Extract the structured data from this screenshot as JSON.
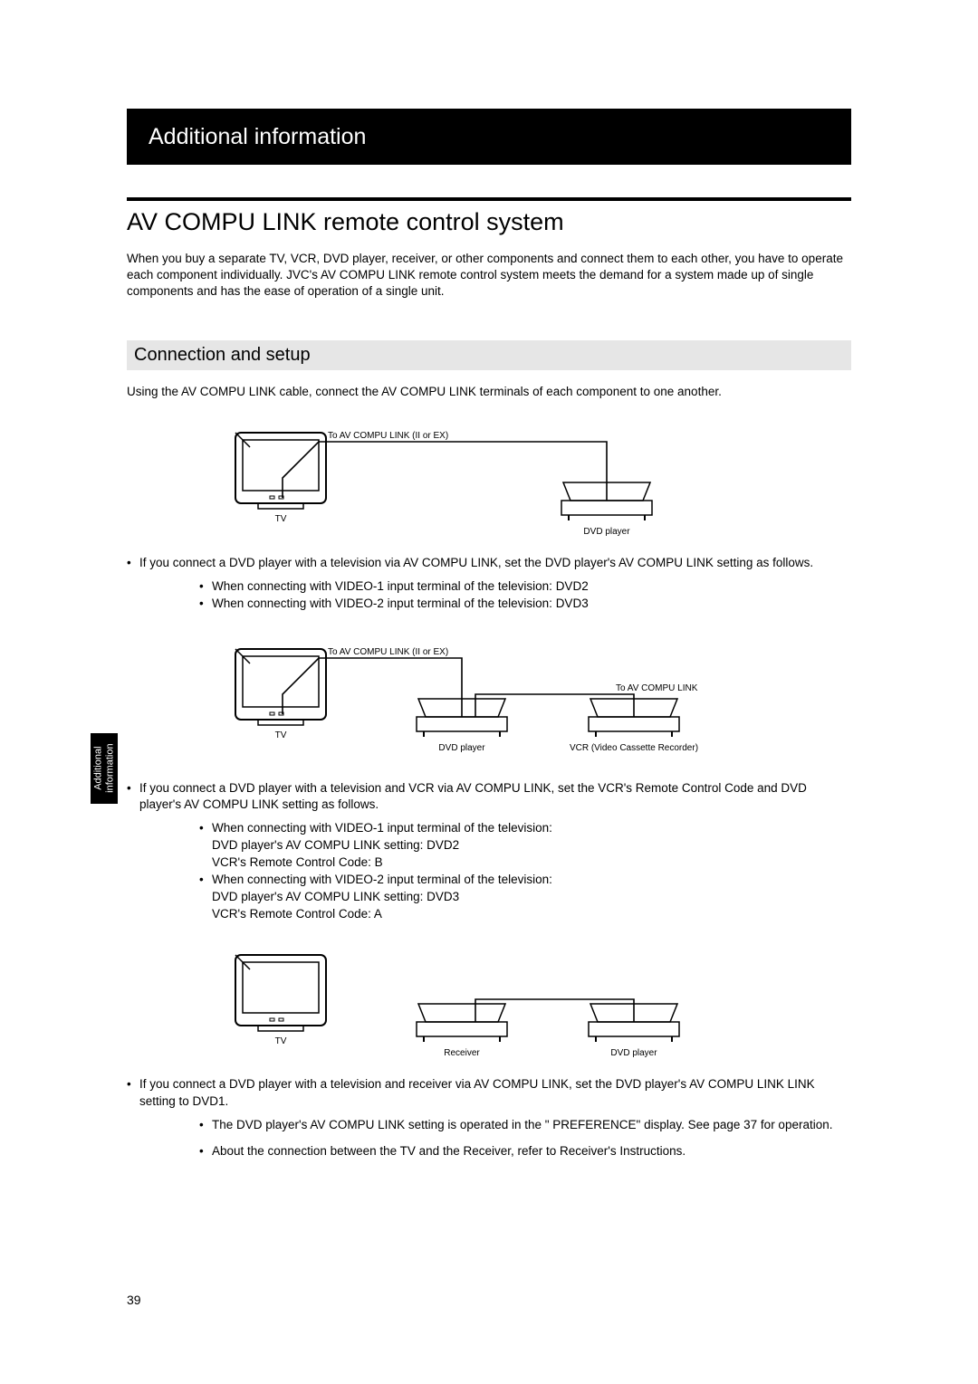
{
  "header": {
    "title": "Additional information"
  },
  "title": "AV COMPU LINK remote control system",
  "intro": "When you buy a separate TV, VCR, DVD player, receiver, or other components and connect them to each other, you have to operate each component individually.  JVC's AV COMPU LINK remote control system meets the demand for a system made up of single components and has the ease of operation of a single unit.",
  "section": {
    "heading": "Connection and setup",
    "lead": "Using the AV COMPU LINK cable, connect the AV COMPU LINK terminals of each component to one another."
  },
  "diagram1": {
    "link_label": "To AV COMPU LINK (II or EX)",
    "tv_label": "TV",
    "dvd_label": "DVD player"
  },
  "block1": {
    "bullet": "If you connect a DVD player with a television via AV COMPU LINK, set the DVD player's AV COMPU LINK setting as follows.",
    "sub1": "When connecting with VIDEO-1 input terminal of the television: DVD2",
    "sub2": "When connecting with VIDEO-2 input terminal of the television: DVD3"
  },
  "diagram2": {
    "link_label": "To AV COMPU LINK (II or EX)",
    "link_label2": "To AV COMPU LINK",
    "tv_label": "TV",
    "dvd_label": "DVD player",
    "vcr_label": "VCR (Video Cassette Recorder)"
  },
  "block2": {
    "bullet": "If you connect a DVD player with a television and VCR via AV COMPU LINK, set the VCR's Remote Control Code and DVD player's AV COMPU LINK setting as follows.",
    "sub1": "When connecting with VIDEO-1 input terminal of the television:\nDVD player's AV COMPU LINK setting: DVD2\nVCR's Remote Control Code: B",
    "sub2": "When connecting with VIDEO-2 input terminal of the television:\nDVD player's AV COMPU LINK setting: DVD3\nVCR's Remote Control Code: A"
  },
  "diagram3": {
    "tv_label": "TV",
    "rec_label": "Receiver",
    "dvd_label": "DVD player"
  },
  "block3": {
    "bullet": "If you connect a DVD player with a television and receiver via AV COMPU LINK, set the DVD player's AV COMPU LINK LINK setting to DVD1.",
    "sub1": "The DVD player's AV COMPU LINK setting is operated in the \" PREFERENCE\" display. See page 37 for operation.",
    "sub2": "About the connection between the TV and the Receiver, refer to Receiver's Instructions."
  },
  "sidetab": {
    "line1": "Additional",
    "line2": "information"
  },
  "page_number": "39"
}
